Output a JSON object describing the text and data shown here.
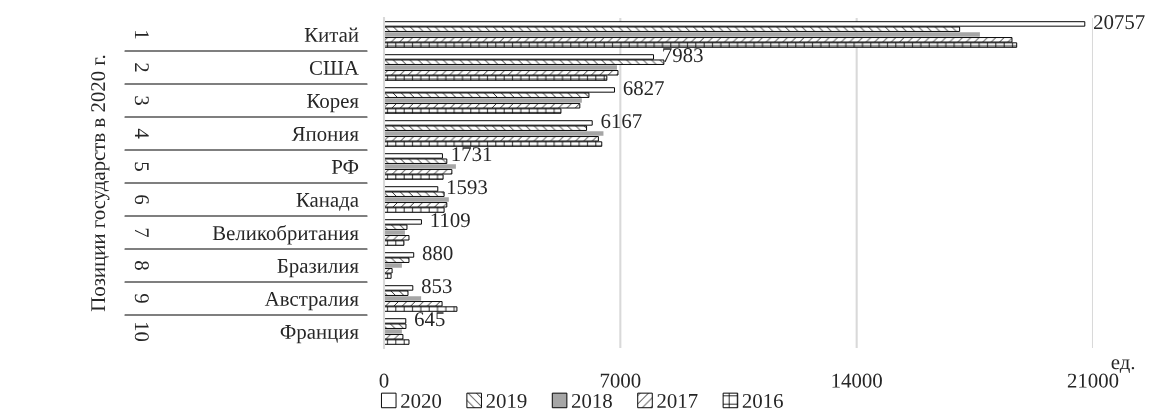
{
  "chart_data": {
    "type": "bar",
    "orientation": "horizontal",
    "xlabel": "ед.",
    "categories": [
      "Китай",
      "США",
      "Корея",
      "Япония",
      "РФ",
      "Канада",
      "Великобритания",
      "Бразилия",
      "Австралия",
      "Франция"
    ],
    "annotations": [
      "Позиции государств в 2020 г.",
      "1",
      "2",
      "3",
      "4",
      "5",
      "6",
      "7",
      "8",
      "9",
      "10"
    ],
    "series": [
      {
        "name": "2020",
        "color": "#ffffff",
        "values": [
          20757,
          7983,
          6827,
          6167,
          1731,
          1593,
          1109,
          880,
          853,
          645
        ],
        "value_labels": [
          "20757",
          "7983",
          "6827",
          "6167",
          "1731",
          "1593",
          "1109",
          "880",
          "853",
          "645"
        ]
      },
      {
        "name": "2019",
        "color": "#000000",
        "values": [
          17050,
          8290,
          6070,
          6000,
          1860,
          1780,
          680,
          740,
          710,
          650
        ]
      },
      {
        "name": "2018",
        "color": "#a6a6a6",
        "values": [
          17650,
          6900,
          5860,
          6500,
          2130,
          1920,
          620,
          530,
          1100,
          530
        ]
      },
      {
        "name": "2017",
        "color": "#000000",
        "values": [
          18600,
          6930,
          5800,
          6350,
          2010,
          1860,
          740,
          240,
          1720,
          560
        ]
      },
      {
        "name": "2016",
        "color": "#000000",
        "values": [
          18740,
          6600,
          5240,
          6450,
          1750,
          1780,
          590,
          210,
          2160,
          740
        ]
      }
    ],
    "xlim": [
      0,
      21000
    ],
    "xticks": [
      0,
      7000,
      14000,
      21000
    ],
    "grid": "x",
    "legend": "bottom"
  }
}
